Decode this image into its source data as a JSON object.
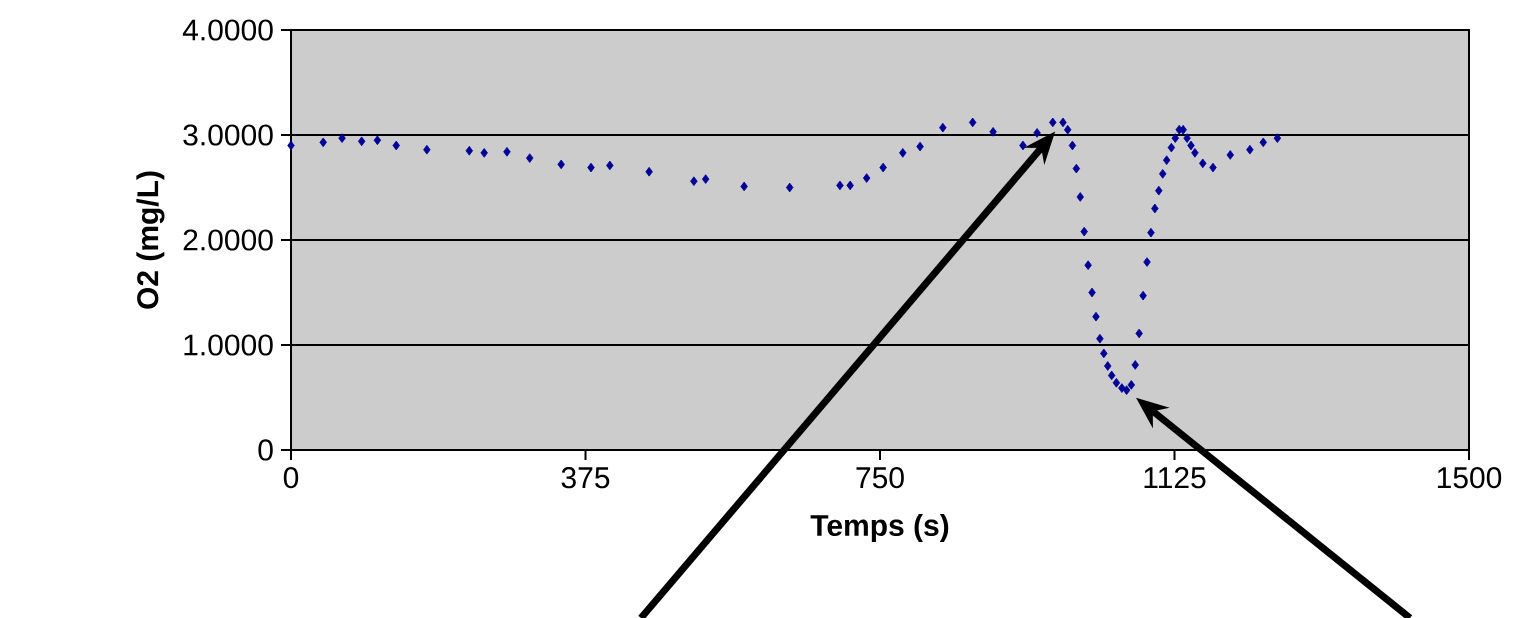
{
  "chart_data": {
    "type": "scatter",
    "xlabel": "Temps (s)",
    "ylabel": "O2 (mg/L)",
    "marker": "diamond",
    "grid": "y",
    "xlim": [
      0,
      1500
    ],
    "xticks": [
      0,
      375,
      750,
      1125,
      1500
    ],
    "ylim": [
      0,
      4
    ],
    "yticks": [
      {
        "value": 0,
        "label": "0"
      },
      {
        "value": 1,
        "label": "1.0000"
      },
      {
        "value": 2,
        "label": "2.0000"
      },
      {
        "value": 3,
        "label": "3.0000"
      },
      {
        "value": 4,
        "label": "4.0000"
      }
    ],
    "series": [
      {
        "color": "#000099",
        "x": [
          0,
          41,
          65,
          90,
          110,
          134,
          173,
          227,
          246,
          275,
          304,
          344,
          382,
          406,
          456,
          513,
          528,
          577,
          635,
          699,
          712,
          733,
          754,
          779,
          801,
          830,
          868,
          894,
          932,
          950,
          970,
          983,
          989,
          995,
          1000,
          1005,
          1010,
          1015,
          1020,
          1025,
          1030,
          1035,
          1040,
          1045,
          1051,
          1058,
          1064,
          1070,
          1075,
          1080,
          1085,
          1090,
          1095,
          1100,
          1105,
          1110,
          1115,
          1121,
          1126,
          1131,
          1136,
          1141,
          1146,
          1151,
          1161,
          1174,
          1196,
          1221,
          1238,
          1256
        ],
        "values": [
          2.9,
          2.93,
          2.97,
          2.94,
          2.95,
          2.9,
          2.86,
          2.85,
          2.83,
          2.84,
          2.78,
          2.72,
          2.69,
          2.71,
          2.65,
          2.56,
          2.58,
          2.51,
          2.5,
          2.52,
          2.52,
          2.59,
          2.69,
          2.83,
          2.89,
          3.07,
          3.12,
          3.03,
          2.9,
          3.02,
          3.12,
          3.12,
          3.05,
          2.9,
          2.68,
          2.41,
          2.08,
          1.76,
          1.5,
          1.27,
          1.06,
          0.92,
          0.8,
          0.71,
          0.64,
          0.59,
          0.57,
          0.62,
          0.81,
          1.11,
          1.47,
          1.79,
          2.07,
          2.3,
          2.47,
          2.63,
          2.76,
          2.88,
          2.97,
          3.05,
          3.05,
          2.97,
          2.9,
          2.83,
          2.73,
          2.69,
          2.81,
          2.86,
          2.93,
          2.97
        ]
      }
    ]
  }
}
